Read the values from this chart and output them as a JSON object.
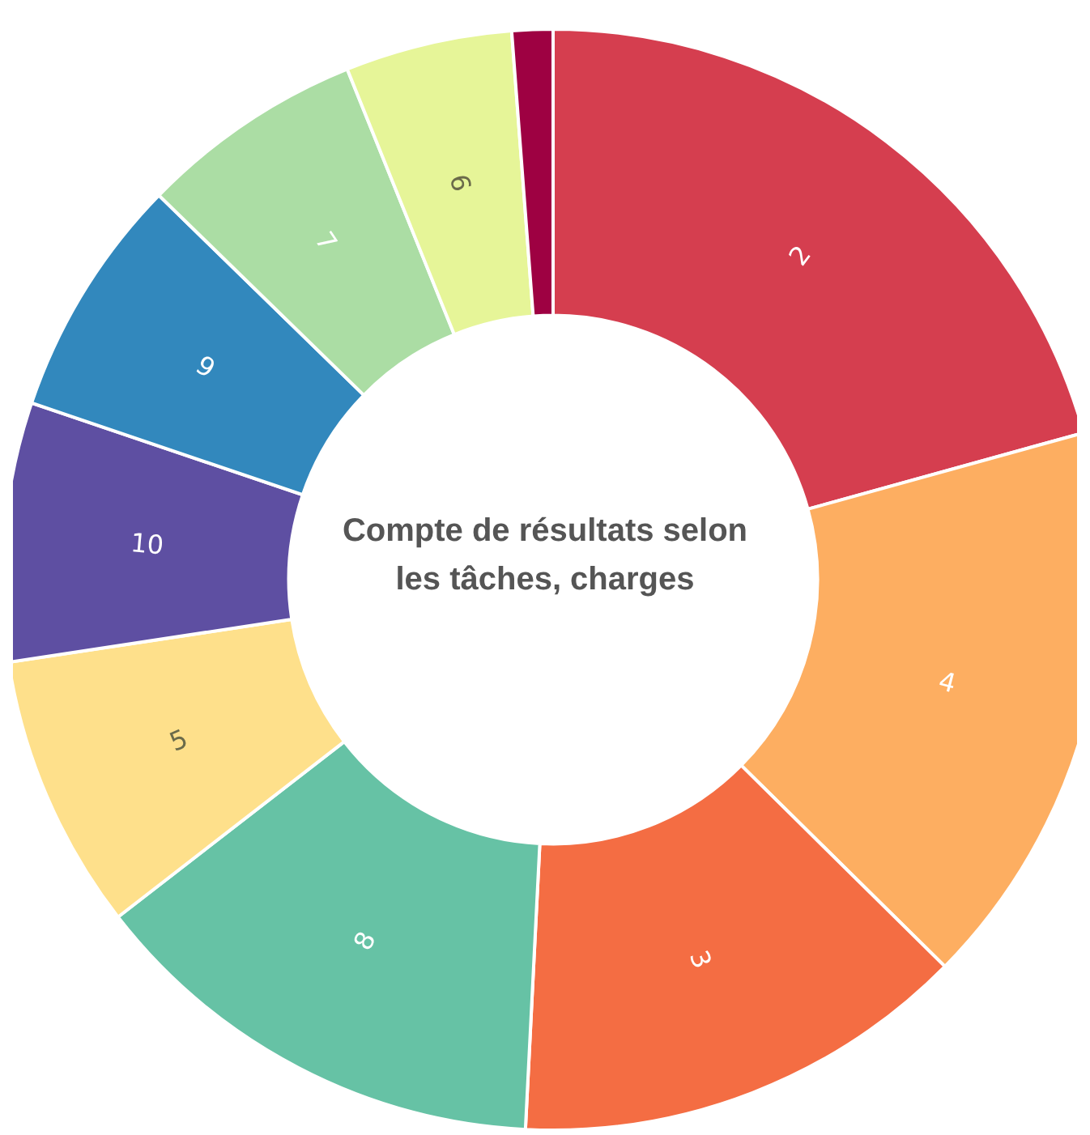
{
  "chart_data": {
    "type": "donut",
    "title": "Compte de résultats selon les tâches, charges",
    "categories": [
      "2",
      "4",
      "3",
      "8",
      "5",
      "10",
      "9",
      "7",
      "6",
      null
    ],
    "values": [
      20.7,
      16.7,
      13.4,
      13.7,
      8.1,
      7.6,
      7.1,
      6.6,
      4.9,
      1.2
    ],
    "colors": [
      "#d53e4f",
      "#fdae61",
      "#f46d43",
      "#66c2a5",
      "#fee08b",
      "#5e4fa2",
      "#3288bd",
      "#abdda4",
      "#e6f598",
      "#9e0142"
    ],
    "legend": false
  }
}
